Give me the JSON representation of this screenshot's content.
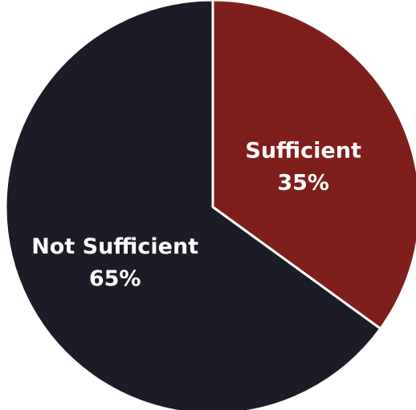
{
  "chart_data": {
    "type": "pie",
    "title": "",
    "slices": [
      {
        "label": "Sufficient",
        "value": 35,
        "value_label": "35%",
        "color": "#7f1f1c"
      },
      {
        "label": "Not Sufficient",
        "value": 65,
        "value_label": "65%",
        "color": "#1c1c26"
      }
    ],
    "start_angle_deg": 0,
    "direction": "clockwise",
    "separator_color": "#ffffff"
  }
}
